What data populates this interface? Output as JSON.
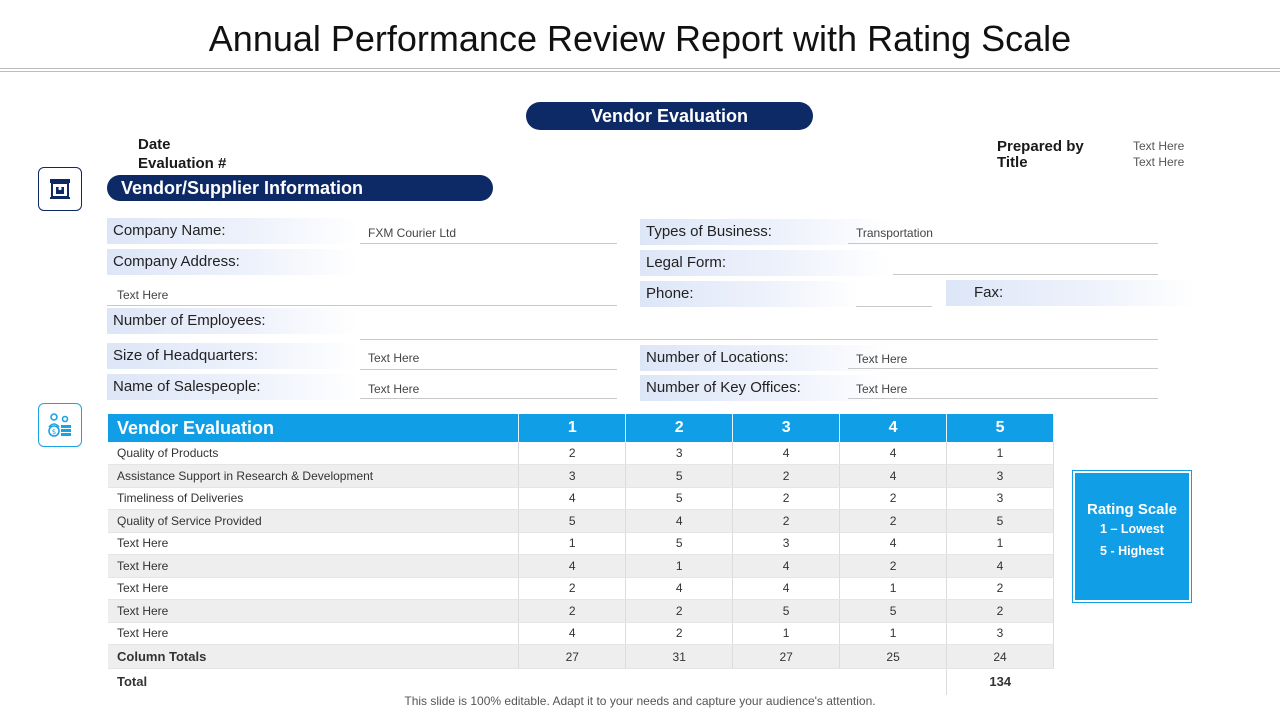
{
  "title": "Annual Performance Review Report with Rating Scale",
  "header_pill": "Vendor Evaluation",
  "meta": {
    "date_label": "Date",
    "evaluation_label": "Evaluation #",
    "prepared_label": "Prepared by",
    "title_label": "Title",
    "prepared_value": "Text Here",
    "title_value": "Text Here"
  },
  "section_title": "Vendor/Supplier Information",
  "fields": {
    "company_name": {
      "label": "Company Name:",
      "value": "FXM Courier Ltd"
    },
    "company_address": {
      "label": "Company Address:",
      "value": "Text Here"
    },
    "employees": {
      "label": "Number of Employees:"
    },
    "hq_size": {
      "label": "Size of Headquarters:",
      "value": "Text Here"
    },
    "salespeople": {
      "label": "Name of Salespeople:",
      "value": "Text Here"
    },
    "business_type": {
      "label": "Types of Business:",
      "value": "Transportation"
    },
    "legal_form": {
      "label": "Legal Form:"
    },
    "phone": {
      "label": "Phone:"
    },
    "fax": {
      "label": "Fax:"
    },
    "locations": {
      "label": "Number of Locations:",
      "value": "Text Here"
    },
    "key_offices": {
      "label": "Number of Key Offices:",
      "value": "Text Here"
    }
  },
  "table": {
    "header": [
      "Vendor Evaluation",
      "1",
      "2",
      "3",
      "4",
      "5"
    ],
    "rows": [
      [
        "Quality of Products",
        "2",
        "3",
        "4",
        "4",
        "1"
      ],
      [
        "Assistance Support in Research & Development",
        "3",
        "5",
        "2",
        "4",
        "3"
      ],
      [
        "Timeliness of Deliveries",
        "4",
        "5",
        "2",
        "2",
        "3"
      ],
      [
        "Quality of Service Provided",
        "5",
        "4",
        "2",
        "2",
        "5"
      ],
      [
        "Text Here",
        "1",
        "5",
        "3",
        "4",
        "1"
      ],
      [
        "Text Here",
        "4",
        "1",
        "4",
        "2",
        "4"
      ],
      [
        "Text Here",
        "2",
        "4",
        "4",
        "1",
        "2"
      ],
      [
        "Text Here",
        "2",
        "2",
        "5",
        "5",
        "2"
      ],
      [
        "Text Here",
        "4",
        "2",
        "1",
        "1",
        "3"
      ]
    ],
    "column_totals": [
      "Column Totals",
      "27",
      "31",
      "27",
      "25",
      "24"
    ],
    "total_label": "Total",
    "total_value": "134"
  },
  "rating_scale": {
    "title": "Rating Scale",
    "lowest": "1 – Lowest",
    "highest": "5 - Highest"
  },
  "footer": "This slide is 100% editable. Adapt it to your needs and capture your audience's attention.",
  "colors": {
    "navy": "#0d2a66",
    "blue": "#109ee6"
  },
  "icons": {
    "vendor_icon": "shop-icon",
    "eval_icon": "money-people-icon"
  }
}
